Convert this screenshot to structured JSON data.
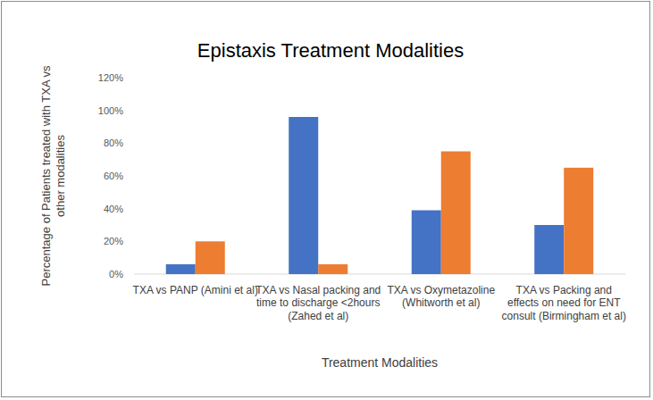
{
  "chart_data": {
    "type": "bar",
    "title": "Epistaxis Treatment Modalities",
    "x_label": "Treatment Modalities",
    "y_label": "Percentage of Patients treated with TXA vs other modalities",
    "categories": [
      "TXA vs PANP (Amini et al)",
      "TXA vs Nasal packing and time to discharge <2hours (Zahed et al)",
      "TXA vs Oxymetazoline (Whitworth et al)",
      "TXA vs Packing and effects on need for ENT consult (Birmingham et al)"
    ],
    "series": [
      {
        "color": "#4472c4",
        "values": [
          6,
          96,
          39,
          30
        ]
      },
      {
        "color": "#ed7d31",
        "values": [
          20,
          6,
          75,
          65
        ]
      }
    ],
    "ylim": [
      0,
      120
    ],
    "yticks": [
      {
        "value": 0,
        "label": "0%"
      },
      {
        "value": 20,
        "label": "20%"
      },
      {
        "value": 40,
        "label": "40%"
      },
      {
        "value": 60,
        "label": "60%"
      },
      {
        "value": 80,
        "label": "80%"
      },
      {
        "value": 100,
        "label": "100%"
      },
      {
        "value": 120,
        "label": "120%"
      }
    ],
    "grid": false
  }
}
